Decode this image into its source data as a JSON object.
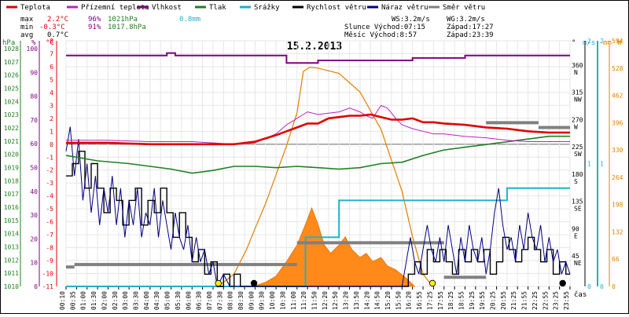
{
  "chart_data": {
    "type": "line",
    "title": "15.2.2013",
    "legend": [
      {
        "name": "Teplota",
        "color": "#e00000"
      },
      {
        "name": "Přízemní teplota",
        "color": "#c020c0"
      },
      {
        "name": "Vlhkost",
        "color": "#800080"
      },
      {
        "name": "Tlak",
        "color": "#208020"
      },
      {
        "name": "Srážky",
        "color": "#20b0c8"
      },
      {
        "name": "Rychlost větru",
        "color": "#000000"
      },
      {
        "name": "Náraz větru",
        "color": "#000080"
      },
      {
        "name": "Směr větru",
        "color": "#808080"
      }
    ],
    "stats": {
      "max_label": "max",
      "min_label": "min",
      "avg_label": "avg",
      "max_temp": "2.2°C",
      "min_temp": "-0.3°C",
      "avg_temp": "0.7°C",
      "max_hum": "96%",
      "min_hum": "91%",
      "max_press": "1021hPa",
      "min_press": "1017.8hPa",
      "rain": "0.8mm",
      "ws": "WS:3.2m/s",
      "wg": "WG:3.2m/s",
      "sunrise": "Slunce Východ:07:15",
      "sunset": "Západ:17:27",
      "moonrise": "Měsíc  Východ:8:57",
      "moonset": "Západ:23:39"
    },
    "axis_units": {
      "hpa": "hPa",
      "pct": "%",
      "degc": "°C",
      "deg": "°",
      "ms": "m/s",
      "mm": "mm",
      "w": "W",
      "cas": "čas"
    },
    "axes": {
      "hpa_ticks": [
        "1028",
        "1027",
        "1026",
        "1025",
        "1024",
        "1023",
        "1022",
        "1021",
        "1020",
        "1019",
        "1018",
        "1017",
        "1016",
        "1015",
        "1014",
        "1013",
        "1012",
        "1011",
        "1010"
      ],
      "pct_ticks": [
        "100",
        "90",
        "80",
        "70",
        "60",
        "50",
        "40",
        "30",
        "20",
        "10",
        "0"
      ],
      "degc_ticks": [
        "8",
        "7",
        "6",
        "5",
        "4",
        "3",
        "2",
        "1",
        "0",
        "-1",
        "-2",
        "-3",
        "-4",
        "-5",
        "-6",
        "-7",
        "-8",
        "-9",
        "-10",
        "-11"
      ],
      "dir_ticks": [
        {
          "deg": "360",
          "dir": "N"
        },
        {
          "deg": "315",
          "dir": "NW"
        },
        {
          "deg": "270",
          "dir": "W"
        },
        {
          "deg": "225",
          "dir": "SW"
        },
        {
          "deg": "180",
          "dir": "S"
        },
        {
          "deg": "135",
          "dir": "SE"
        },
        {
          "deg": "90",
          "dir": "E"
        },
        {
          "deg": "45",
          "dir": "NE"
        }
      ],
      "ms_ticks": [
        "2",
        "1",
        "0"
      ],
      "mm_ticks": [
        "2",
        "1",
        "0"
      ],
      "w_ticks": [
        "594",
        "528",
        "462",
        "396",
        "330",
        "264",
        "198",
        "132",
        "66",
        "0"
      ],
      "time_ticks": [
        "00:10",
        "00:35",
        "01:00",
        "01:30",
        "02:00",
        "02:30",
        "03:00",
        "03:30",
        "04:00",
        "04:30",
        "05:00",
        "05:30",
        "06:00",
        "06:30",
        "07:00",
        "07:30",
        "08:00",
        "08:30",
        "09:00",
        "09:30",
        "10:00",
        "10:30",
        "11:00",
        "11:20",
        "11:50",
        "12:20",
        "12:50",
        "13:20",
        "13:50",
        "14:20",
        "14:50",
        "15:20",
        "15:50",
        "16:20",
        "16:55",
        "17:25",
        "17:55",
        "18:25",
        "18:55",
        "19:25",
        "19:55",
        "20:25",
        "20:55",
        "21:25",
        "21:55",
        "22:25",
        "22:55",
        "23:25",
        "23:55"
      ]
    },
    "ranges": {
      "temp_c": [
        -11,
        8
      ],
      "humidity_pct": [
        0,
        100
      ],
      "pressure_hpa": [
        1010,
        1028
      ],
      "wind_ms": [
        0,
        2
      ],
      "rain_mm": [
        0,
        2
      ],
      "radiation_w": [
        0,
        594
      ],
      "direction_deg": [
        0,
        405
      ],
      "time_h": [
        0,
        24
      ]
    },
    "series": {
      "temperature": [
        [
          0,
          0.1
        ],
        [
          2,
          0.1
        ],
        [
          4,
          0.0
        ],
        [
          6,
          0.0
        ],
        [
          7,
          0.0
        ],
        [
          8,
          0.0
        ],
        [
          9,
          0.2
        ],
        [
          10,
          0.7
        ],
        [
          10.5,
          1.0
        ],
        [
          11,
          1.3
        ],
        [
          11.5,
          1.6
        ],
        [
          12,
          1.6
        ],
        [
          12.5,
          2.0
        ],
        [
          13,
          2.1
        ],
        [
          13.5,
          2.2
        ],
        [
          14,
          2.2
        ],
        [
          14.5,
          2.3
        ],
        [
          15,
          2.1
        ],
        [
          15.5,
          1.9
        ],
        [
          16,
          1.9
        ],
        [
          16.5,
          2.0
        ],
        [
          17,
          1.7
        ],
        [
          17.5,
          1.7
        ],
        [
          18,
          1.6
        ],
        [
          19,
          1.5
        ],
        [
          20,
          1.3
        ],
        [
          21,
          1.2
        ],
        [
          22,
          1.0
        ],
        [
          23,
          0.9
        ],
        [
          24,
          0.9
        ]
      ],
      "ground_temperature": [
        [
          0,
          0.3
        ],
        [
          2,
          0.3
        ],
        [
          4,
          0.2
        ],
        [
          6,
          0.2
        ],
        [
          7,
          0.1
        ],
        [
          8,
          0.0
        ],
        [
          9,
          0.1
        ],
        [
          10,
          0.8
        ],
        [
          10.5,
          1.5
        ],
        [
          11,
          2.0
        ],
        [
          11.5,
          2.5
        ],
        [
          12,
          2.3
        ],
        [
          12.5,
          2.4
        ],
        [
          13,
          2.5
        ],
        [
          13.5,
          2.8
        ],
        [
          14,
          2.5
        ],
        [
          14.3,
          2.2
        ],
        [
          14.6,
          2.0
        ],
        [
          15,
          3.0
        ],
        [
          15.3,
          2.8
        ],
        [
          15.7,
          2.0
        ],
        [
          16,
          1.5
        ],
        [
          16.5,
          1.2
        ],
        [
          17,
          1.0
        ],
        [
          17.5,
          0.8
        ],
        [
          18,
          0.8
        ],
        [
          19,
          0.6
        ],
        [
          20,
          0.5
        ],
        [
          21,
          0.3
        ],
        [
          22,
          0.2
        ],
        [
          23,
          0.2
        ],
        [
          24,
          0.2
        ]
      ],
      "humidity": [
        [
          0,
          94
        ],
        [
          4.5,
          94
        ],
        [
          4.8,
          95
        ],
        [
          5.2,
          94
        ],
        [
          10,
          94
        ],
        [
          10.5,
          91
        ],
        [
          11.5,
          91
        ],
        [
          12,
          92
        ],
        [
          16,
          92
        ],
        [
          16.5,
          93
        ],
        [
          18,
          93
        ],
        [
          19,
          94
        ],
        [
          21,
          94
        ],
        [
          24,
          94
        ]
      ],
      "pressure": [
        [
          0,
          1019.6
        ],
        [
          1.5,
          1019.2
        ],
        [
          3,
          1019.0
        ],
        [
          4,
          1018.8
        ],
        [
          5,
          1018.6
        ],
        [
          6,
          1018.3
        ],
        [
          7,
          1018.5
        ],
        [
          8,
          1018.8
        ],
        [
          9,
          1018.8
        ],
        [
          10,
          1018.7
        ],
        [
          11,
          1018.8
        ],
        [
          12,
          1018.7
        ],
        [
          13,
          1018.6
        ],
        [
          14,
          1018.7
        ],
        [
          15,
          1019.0
        ],
        [
          16,
          1019.1
        ],
        [
          17,
          1019.6
        ],
        [
          18,
          1020.0
        ],
        [
          19,
          1020.2
        ],
        [
          20,
          1020.4
        ],
        [
          21,
          1020.6
        ],
        [
          22,
          1020.8
        ],
        [
          23,
          1021.0
        ],
        [
          24,
          1021.0
        ]
      ],
      "rain_cumulative": [
        [
          0,
          0
        ],
        [
          11.35,
          0
        ],
        [
          11.4,
          0.4
        ],
        [
          12.9,
          0.4
        ],
        [
          13,
          0.7
        ],
        [
          20.9,
          0.7
        ],
        [
          21,
          0.8
        ],
        [
          24,
          0.8
        ]
      ],
      "solar_radiation": [
        [
          7.25,
          0
        ],
        [
          8,
          30
        ],
        [
          8.6,
          90
        ],
        [
          9,
          140
        ],
        [
          9.5,
          200
        ],
        [
          10,
          270
        ],
        [
          10.5,
          340
        ],
        [
          11,
          420
        ],
        [
          11.3,
          520
        ],
        [
          11.6,
          530
        ],
        [
          12,
          528
        ],
        [
          13,
          515
        ],
        [
          14,
          470
        ],
        [
          15,
          380
        ],
        [
          16,
          230
        ],
        [
          16.5,
          120
        ],
        [
          17,
          30
        ],
        [
          17.45,
          0
        ]
      ],
      "measured_radiation": [
        [
          8.9,
          0
        ],
        [
          9.5,
          10
        ],
        [
          10,
          25
        ],
        [
          10.5,
          60
        ],
        [
          11,
          100
        ],
        [
          11.4,
          150
        ],
        [
          11.7,
          190
        ],
        [
          12,
          150
        ],
        [
          12.3,
          100
        ],
        [
          12.6,
          80
        ],
        [
          13,
          100
        ],
        [
          13.3,
          120
        ],
        [
          13.6,
          90
        ],
        [
          14,
          70
        ],
        [
          14.3,
          80
        ],
        [
          14.6,
          60
        ],
        [
          15,
          70
        ],
        [
          15.3,
          50
        ],
        [
          15.7,
          40
        ],
        [
          16.2,
          20
        ],
        [
          16.6,
          0
        ]
      ],
      "wind_speed": [
        [
          0,
          0.9
        ],
        [
          0.3,
          1.0
        ],
        [
          0.6,
          1.1
        ],
        [
          0.9,
          0.8
        ],
        [
          1.2,
          1.0
        ],
        [
          1.5,
          0.8
        ],
        [
          1.8,
          0.6
        ],
        [
          2.1,
          0.8
        ],
        [
          2.4,
          0.7
        ],
        [
          2.7,
          0.5
        ],
        [
          3,
          0.7
        ],
        [
          3.3,
          0.8
        ],
        [
          3.6,
          0.5
        ],
        [
          3.9,
          0.7
        ],
        [
          4.2,
          0.6
        ],
        [
          4.5,
          0.8
        ],
        [
          4.8,
          0.6
        ],
        [
          5.1,
          0.4
        ],
        [
          5.4,
          0.6
        ],
        [
          5.7,
          0.4
        ],
        [
          6,
          0.2
        ],
        [
          6.3,
          0.3
        ],
        [
          6.6,
          0.1
        ],
        [
          6.9,
          0.2
        ],
        [
          7.2,
          0.0
        ],
        [
          7.5,
          0.1
        ],
        [
          7.8,
          0.0
        ],
        [
          8,
          0.1
        ],
        [
          8.3,
          0.0
        ],
        [
          16,
          0.0
        ],
        [
          16.3,
          0.1
        ],
        [
          16.6,
          0.2
        ],
        [
          16.9,
          0.1
        ],
        [
          17.2,
          0.3
        ],
        [
          17.5,
          0.2
        ],
        [
          17.8,
          0.3
        ],
        [
          18.1,
          0.2
        ],
        [
          18.4,
          0.1
        ],
        [
          18.7,
          0.3
        ],
        [
          19,
          0.2
        ],
        [
          19.3,
          0.3
        ],
        [
          19.6,
          0.2
        ],
        [
          19.9,
          0.3
        ],
        [
          20.2,
          0.1
        ],
        [
          20.5,
          0.2
        ],
        [
          20.8,
          0.4
        ],
        [
          21.1,
          0.3
        ],
        [
          21.4,
          0.2
        ],
        [
          21.7,
          0.3
        ],
        [
          22,
          0.4
        ],
        [
          22.3,
          0.3
        ],
        [
          22.6,
          0.2
        ],
        [
          22.9,
          0.3
        ],
        [
          23.2,
          0.1
        ],
        [
          23.5,
          0.2
        ],
        [
          23.8,
          0.1
        ],
        [
          24,
          0.1
        ]
      ],
      "wind_gust": [
        [
          0,
          1.1
        ],
        [
          0.2,
          1.3
        ],
        [
          0.4,
          0.9
        ],
        [
          0.6,
          1.2
        ],
        [
          0.8,
          0.7
        ],
        [
          1.0,
          1.0
        ],
        [
          1.2,
          0.6
        ],
        [
          1.4,
          0.9
        ],
        [
          1.6,
          0.5
        ],
        [
          1.8,
          0.8
        ],
        [
          2.0,
          0.6
        ],
        [
          2.2,
          0.9
        ],
        [
          2.4,
          0.5
        ],
        [
          2.6,
          0.8
        ],
        [
          2.8,
          0.4
        ],
        [
          3.0,
          0.7
        ],
        [
          3.2,
          0.5
        ],
        [
          3.4,
          0.8
        ],
        [
          3.6,
          0.4
        ],
        [
          3.8,
          0.6
        ],
        [
          4.0,
          0.5
        ],
        [
          4.2,
          0.8
        ],
        [
          4.4,
          0.4
        ],
        [
          4.6,
          0.7
        ],
        [
          4.8,
          0.5
        ],
        [
          5.0,
          0.3
        ],
        [
          5.2,
          0.6
        ],
        [
          5.4,
          0.4
        ],
        [
          5.6,
          0.3
        ],
        [
          5.8,
          0.5
        ],
        [
          6.0,
          0.2
        ],
        [
          6.2,
          0.4
        ],
        [
          6.4,
          0.2
        ],
        [
          6.6,
          0.3
        ],
        [
          6.8,
          0.1
        ],
        [
          7.0,
          0.2
        ],
        [
          7.2,
          0.0
        ],
        [
          7.5,
          0.1
        ],
        [
          7.8,
          0.0
        ],
        [
          16,
          0.0
        ],
        [
          16.2,
          0.2
        ],
        [
          16.4,
          0.4
        ],
        [
          16.6,
          0.2
        ],
        [
          16.8,
          0.1
        ],
        [
          17.0,
          0.3
        ],
        [
          17.2,
          0.5
        ],
        [
          17.4,
          0.3
        ],
        [
          17.6,
          0.2
        ],
        [
          17.8,
          0.4
        ],
        [
          18.0,
          0.2
        ],
        [
          18.2,
          0.5
        ],
        [
          18.4,
          0.3
        ],
        [
          18.6,
          0.1
        ],
        [
          18.8,
          0.4
        ],
        [
          19.0,
          0.2
        ],
        [
          19.2,
          0.5
        ],
        [
          19.4,
          0.3
        ],
        [
          19.6,
          0.2
        ],
        [
          19.8,
          0.4
        ],
        [
          20.0,
          0.1
        ],
        [
          20.2,
          0.3
        ],
        [
          20.4,
          0.6
        ],
        [
          20.6,
          0.8
        ],
        [
          20.8,
          0.5
        ],
        [
          21.0,
          0.3
        ],
        [
          21.2,
          0.4
        ],
        [
          21.4,
          0.2
        ],
        [
          21.6,
          0.5
        ],
        [
          21.8,
          0.3
        ],
        [
          22.0,
          0.6
        ],
        [
          22.2,
          0.4
        ],
        [
          22.4,
          0.3
        ],
        [
          22.6,
          0.5
        ],
        [
          22.8,
          0.2
        ],
        [
          23.0,
          0.4
        ],
        [
          23.2,
          0.2
        ],
        [
          23.4,
          0.3
        ],
        [
          23.6,
          0.1
        ],
        [
          23.8,
          0.2
        ],
        [
          24,
          0.1
        ]
      ],
      "wind_direction_segments": [
        {
          "from": 0.0,
          "to": 0.4,
          "deg": 32
        },
        {
          "from": 0.4,
          "to": 11.0,
          "deg": 36
        },
        {
          "from": 11.0,
          "to": 18.0,
          "deg": 72
        },
        {
          "from": 18.0,
          "to": 20.0,
          "deg": 15
        },
        {
          "from": 20.0,
          "to": 22.5,
          "deg": 270
        },
        {
          "from": 22.5,
          "to": 24.0,
          "deg": 262
        }
      ]
    },
    "markers": [
      {
        "kind": "sunrise",
        "t": 7.25,
        "color": "#ffee00"
      },
      {
        "kind": "moonrise",
        "t": 8.95,
        "color": "#000000"
      },
      {
        "kind": "sunset",
        "t": 17.45,
        "color": "#ffee00"
      },
      {
        "kind": "moonset",
        "t": 23.65,
        "color": "#000000"
      }
    ],
    "grid": true,
    "legend_position": "top"
  }
}
